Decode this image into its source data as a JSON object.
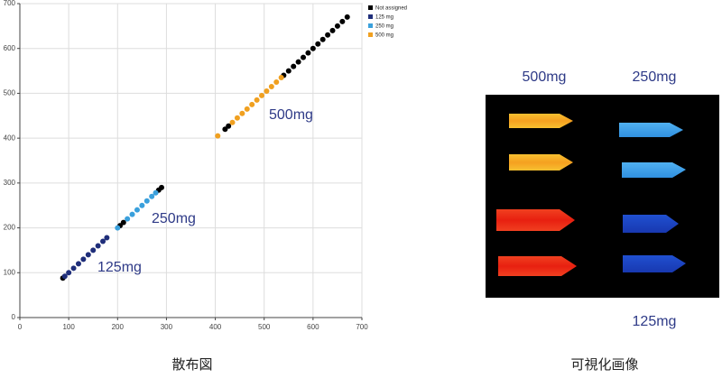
{
  "chart_data": {
    "type": "scatter",
    "xlim": [
      0,
      700
    ],
    "ylim": [
      0,
      700
    ],
    "xticks": [
      0,
      100,
      200,
      300,
      400,
      500,
      600,
      700
    ],
    "yticks": [
      0,
      100,
      200,
      300,
      400,
      500,
      600,
      700
    ],
    "grid": true,
    "legend": "right",
    "series": [
      {
        "name": "Not assigned",
        "color": "#000000",
        "x": [
          88,
          205,
          212,
          284,
          290,
          420,
          427,
          540,
          550,
          560,
          570,
          580,
          590,
          600,
          610,
          620,
          630,
          640,
          650,
          660,
          670
        ],
        "y": [
          88,
          205,
          212,
          284,
          290,
          420,
          427,
          540,
          550,
          560,
          570,
          580,
          590,
          600,
          610,
          620,
          630,
          640,
          650,
          660,
          670
        ]
      },
      {
        "name": "125 mg",
        "color": "#1f2e7a",
        "x": [
          92,
          100,
          110,
          120,
          130,
          140,
          150,
          160,
          170,
          178
        ],
        "y": [
          92,
          100,
          110,
          120,
          130,
          140,
          150,
          160,
          170,
          178
        ]
      },
      {
        "name": "250 mg",
        "color": "#3aa0dc",
        "x": [
          200,
          220,
          230,
          240,
          250,
          260,
          270,
          278
        ],
        "y": [
          200,
          220,
          230,
          240,
          250,
          260,
          270,
          278
        ]
      },
      {
        "name": "500 mg",
        "color": "#f0a020",
        "x": [
          405,
          435,
          445,
          455,
          465,
          475,
          485,
          495,
          505,
          515,
          525,
          535
        ],
        "y": [
          405,
          435,
          445,
          455,
          465,
          475,
          485,
          495,
          505,
          515,
          525,
          535
        ]
      }
    ],
    "annotations": [
      "500mg",
      "250mg",
      "125mg"
    ],
    "caption": "散布図"
  },
  "image_panel": {
    "labels": [
      "500mg",
      "250mg",
      "125mg"
    ],
    "caption": "可視化画像"
  }
}
